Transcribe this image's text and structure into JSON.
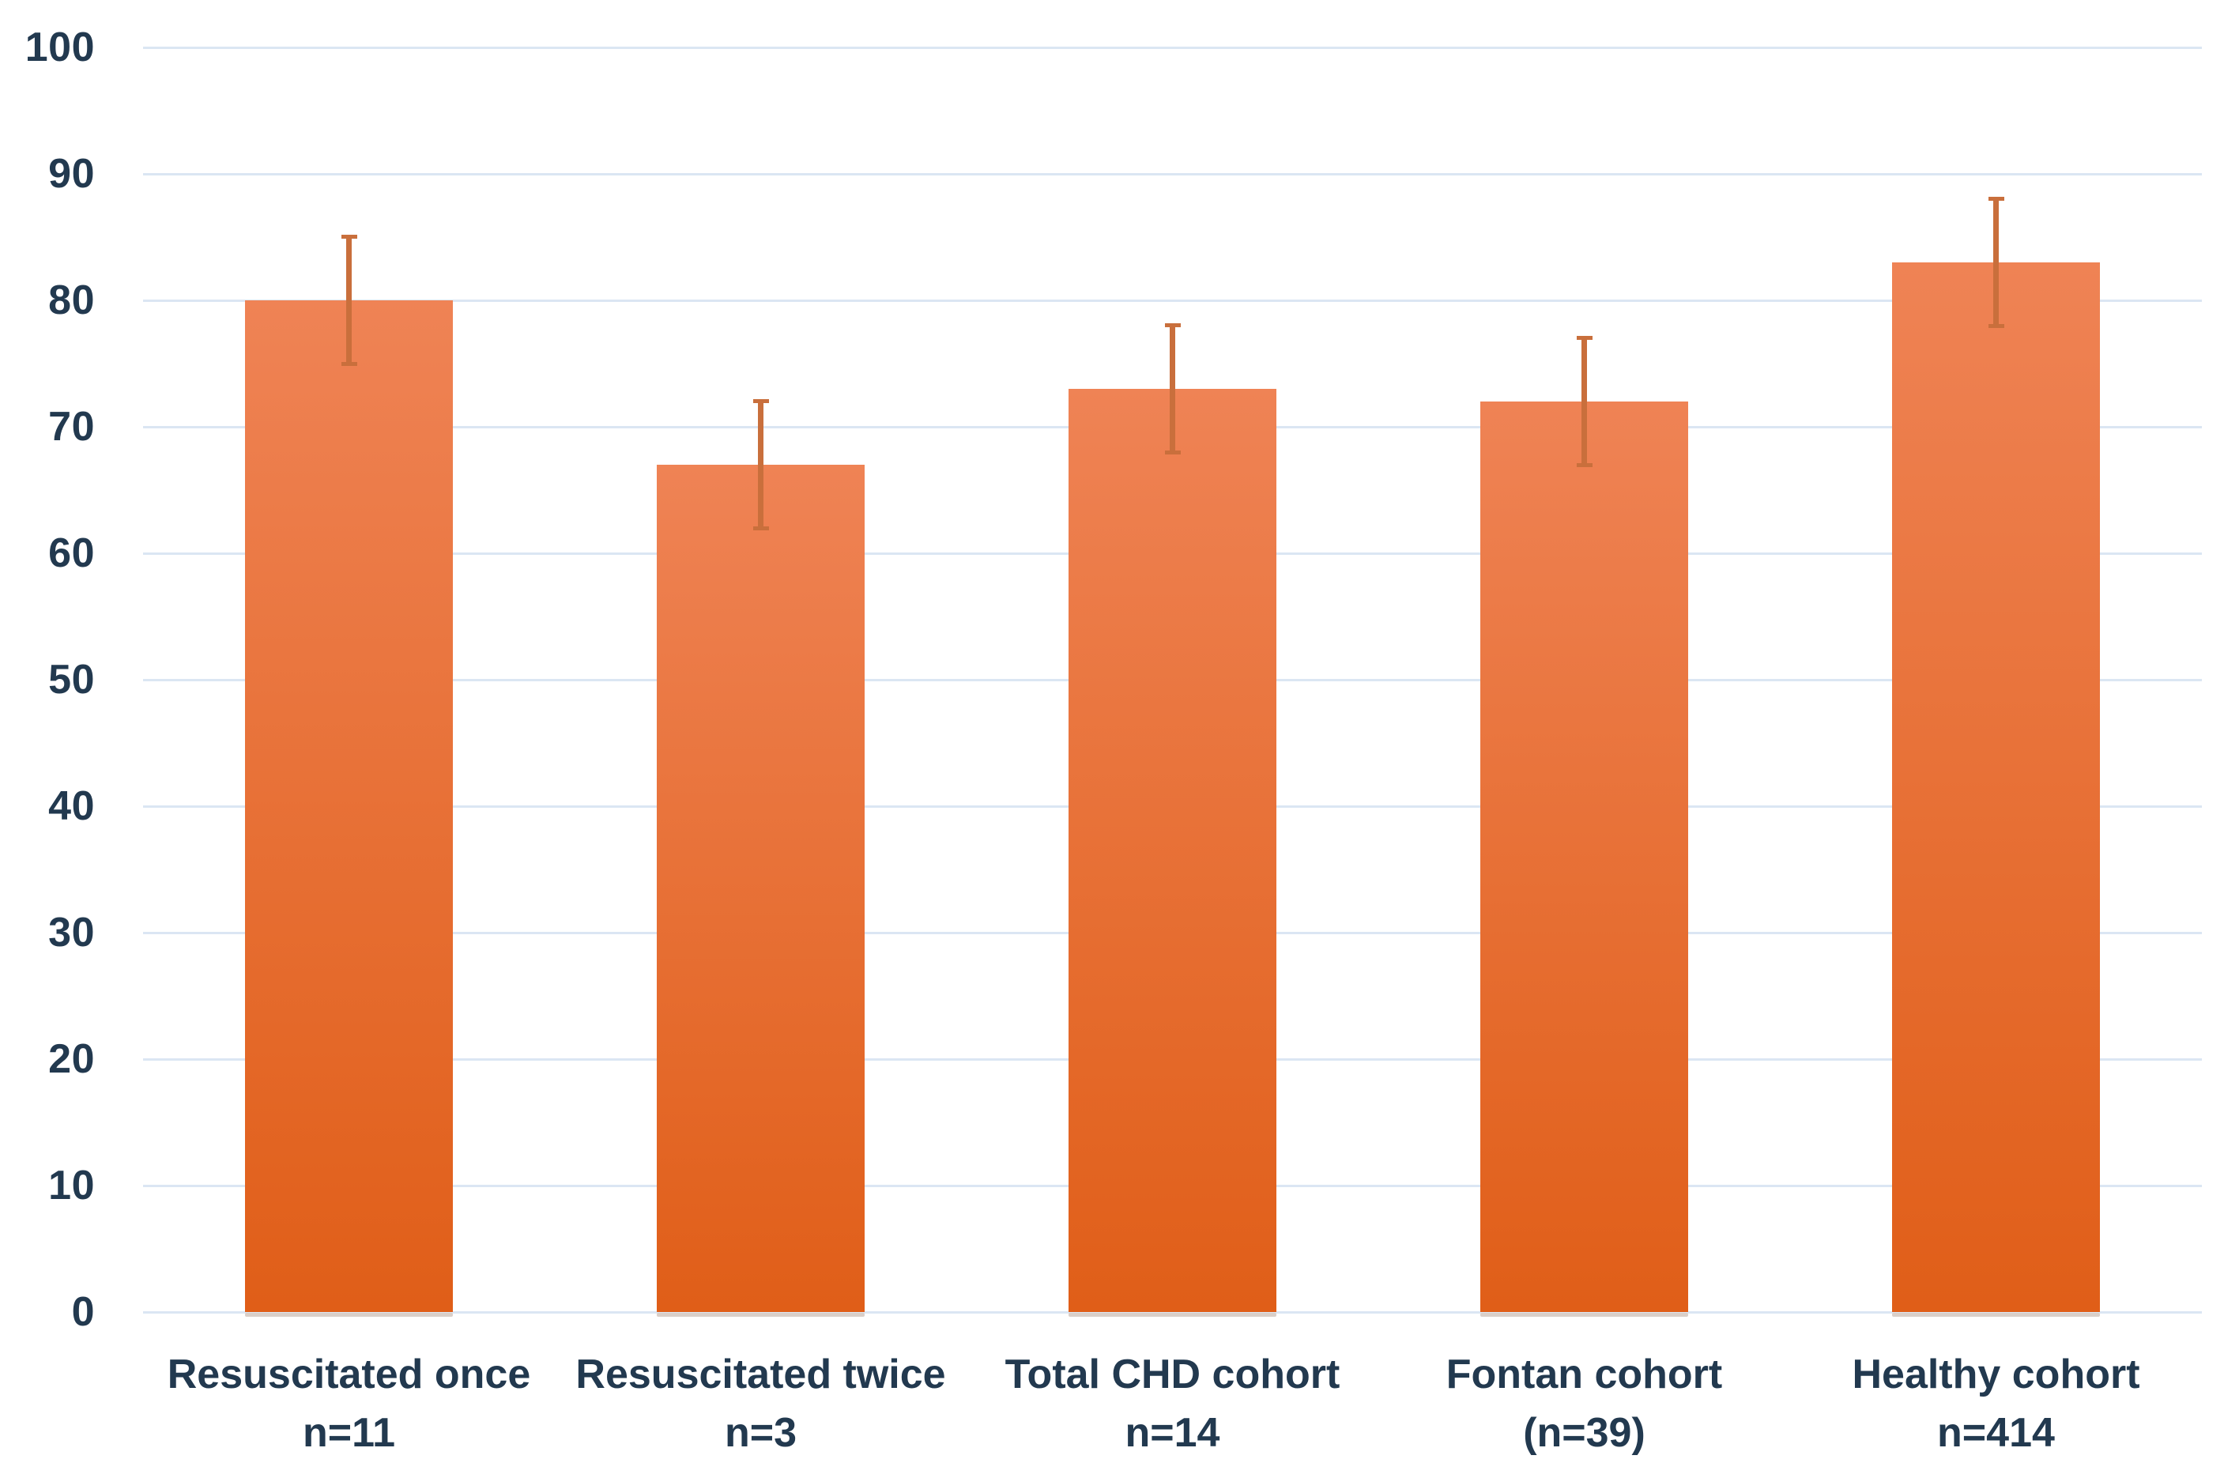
{
  "chart_data": {
    "type": "bar",
    "title": "",
    "xlabel": "",
    "ylabel": "",
    "ylim": [
      0,
      100
    ],
    "ytick_step": 10,
    "grid": true,
    "legend": false,
    "categories": [
      "Resuscitated once",
      "Resuscitated twice",
      "Total CHD cohort",
      "Fontan cohort",
      "Healthy cohort"
    ],
    "category_sublabels": [
      "n=11",
      "n=3",
      "n=14",
      "(n=39)",
      "n=414"
    ],
    "values": [
      80,
      67,
      73,
      72,
      83
    ],
    "error_bars": {
      "low": [
        75,
        62,
        68,
        67,
        78
      ],
      "high": [
        85,
        72,
        78,
        77,
        88
      ]
    },
    "colors": {
      "bar_gradient_top": "#EF8355",
      "bar_gradient_bottom": "#E05E18",
      "error_bar": "#C96F3C",
      "gridline": "#DBE6F3",
      "text": "#22394F",
      "bar_shadow": "#D9CFC9",
      "background": "#FFFFFF"
    }
  }
}
